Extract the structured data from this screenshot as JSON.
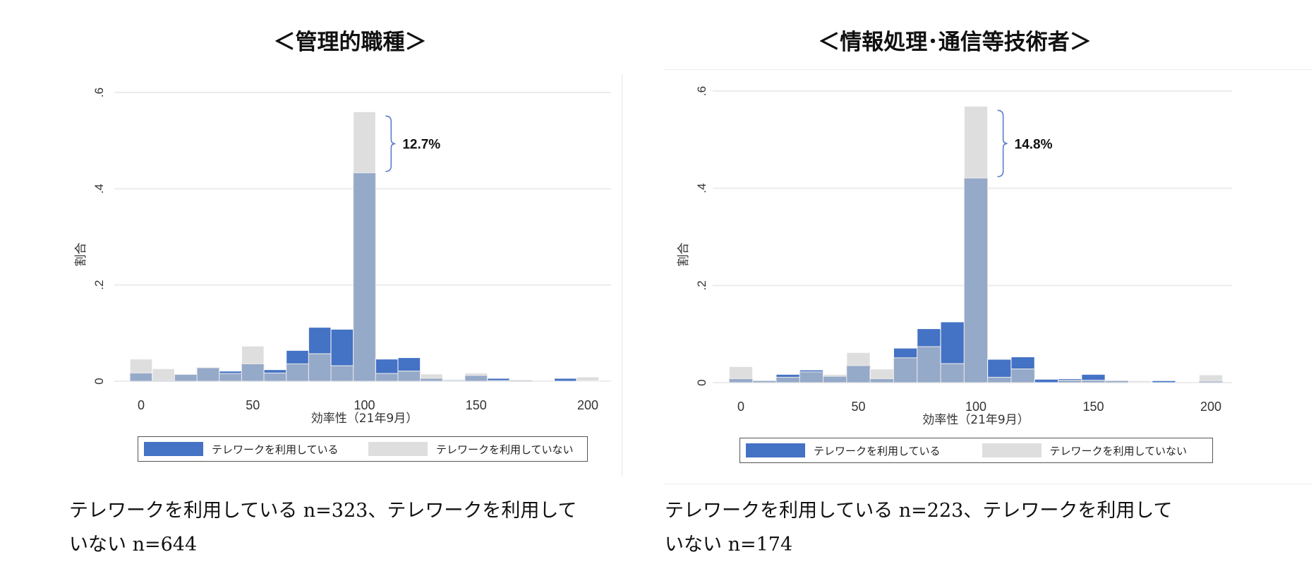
{
  "colors": {
    "telework": "#4472c4",
    "no_telework": "#dedede",
    "overlap": "#95a9c9",
    "bracket": "#5b7fc9"
  },
  "chart_data": [
    {
      "type": "bar",
      "title": "＜管理的職種＞",
      "xlabel": "効率性（21年9月）",
      "ylabel": "割合",
      "xlim": [
        -5,
        205
      ],
      "ylim": [
        0,
        0.6
      ],
      "x_ticks": [
        "0",
        "50",
        "100",
        "150",
        "200"
      ],
      "x_tick_values": [
        0,
        50,
        100,
        150,
        200
      ],
      "y_ticks": [
        "0",
        ".2",
        ".4",
        ".6"
      ],
      "y_tick_values": [
        0,
        0.2,
        0.4,
        0.6
      ],
      "bin_width": 10,
      "categories": [
        0,
        10,
        20,
        30,
        40,
        50,
        60,
        70,
        80,
        90,
        100,
        110,
        120,
        130,
        140,
        150,
        160,
        170,
        180,
        190,
        200
      ],
      "series": [
        {
          "name": "テレワークを利用している",
          "values": [
            0.017,
            0.002,
            0.014,
            0.028,
            0.021,
            0.036,
            0.024,
            0.064,
            0.112,
            0.108,
            0.433,
            0.046,
            0.049,
            0.006,
            0.003,
            0.012,
            0.006,
            0.003,
            0,
            0.006,
            0
          ]
        },
        {
          "name": "テレワークを利用していない",
          "values": [
            0.046,
            0.026,
            0.015,
            0.028,
            0.016,
            0.073,
            0.017,
            0.036,
            0.057,
            0.032,
            0.56,
            0.016,
            0.021,
            0.015,
            0.001,
            0.017,
            0.001,
            0.002,
            0,
            0,
            0.009
          ]
        }
      ],
      "annotation": {
        "text": "12.7%",
        "x": 100,
        "y_from": 0.433,
        "y_to": 0.56
      },
      "legend": [
        "テレワークを利用している",
        "テレワークを利用していない"
      ],
      "legend_position": "bottom",
      "grid": true
    },
    {
      "type": "bar",
      "title": "＜情報処理･通信等技術者＞",
      "xlabel": "効率性（21年9月）",
      "ylabel": "割合",
      "xlim": [
        -5,
        205
      ],
      "ylim": [
        0,
        0.6
      ],
      "x_ticks": [
        "0",
        "50",
        "100",
        "150",
        "200"
      ],
      "x_tick_values": [
        0,
        50,
        100,
        150,
        200
      ],
      "y_ticks": [
        "0",
        ".2",
        ".4",
        ".6"
      ],
      "y_tick_values": [
        0,
        0.2,
        0.4,
        0.6
      ],
      "bin_width": 10,
      "categories": [
        0,
        10,
        20,
        30,
        40,
        50,
        60,
        70,
        80,
        90,
        100,
        110,
        120,
        130,
        140,
        150,
        160,
        170,
        180,
        190,
        200
      ],
      "series": [
        {
          "name": "テレワークを利用している",
          "values": [
            0.008,
            0.004,
            0.017,
            0.026,
            0.013,
            0.035,
            0.008,
            0.071,
            0.111,
            0.125,
            0.421,
            0.048,
            0.053,
            0.007,
            0.008,
            0.017,
            0.004,
            0,
            0.004,
            0,
            0.003
          ]
        },
        {
          "name": "テレワークを利用していない",
          "values": [
            0.033,
            0.004,
            0.011,
            0.022,
            0.017,
            0.062,
            0.028,
            0.051,
            0.074,
            0.039,
            0.569,
            0.011,
            0.028,
            0,
            0.005,
            0.005,
            0.004,
            0.004,
            0,
            0,
            0.016
          ]
        }
      ],
      "annotation": {
        "text": "14.8%",
        "x": 100,
        "y_from": 0.421,
        "y_to": 0.569
      },
      "legend": [
        "テレワークを利用している",
        "テレワークを利用していない"
      ],
      "legend_position": "bottom",
      "grid": true
    }
  ],
  "captions": [
    {
      "line1": "テレワークを利用している n=323、テレワークを利用して",
      "line2": "いない n=644"
    },
    {
      "line1": "テレワークを利用している n=223、テレワークを利用して",
      "line2": "いない n=174"
    }
  ]
}
